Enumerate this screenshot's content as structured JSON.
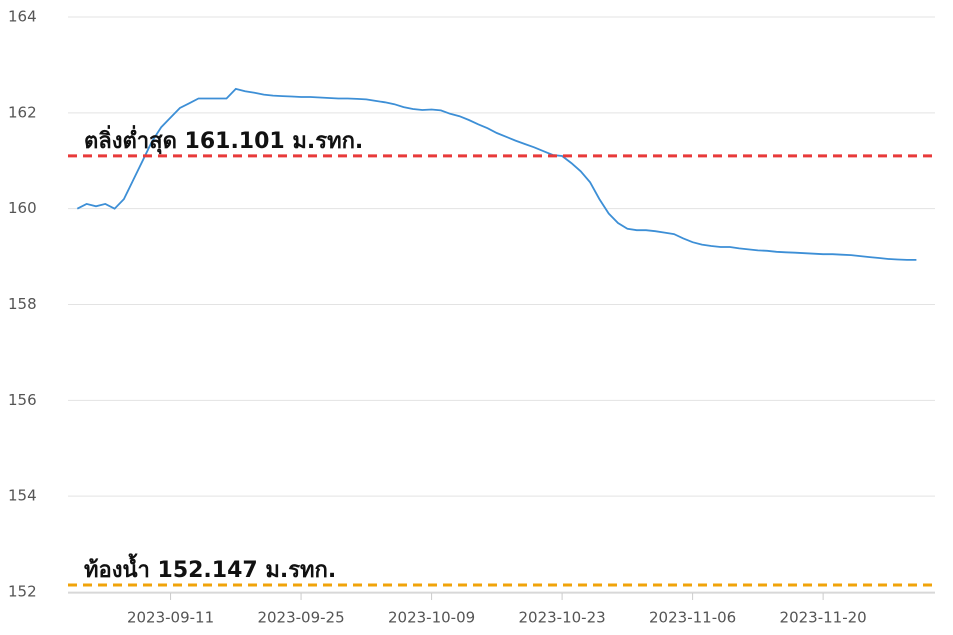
{
  "chart_data": {
    "type": "line",
    "x": [
      "2023-09-01",
      "2023-09-02",
      "2023-09-03",
      "2023-09-04",
      "2023-09-05",
      "2023-09-06",
      "2023-09-07",
      "2023-09-08",
      "2023-09-09",
      "2023-09-10",
      "2023-09-11",
      "2023-09-12",
      "2023-09-13",
      "2023-09-14",
      "2023-09-15",
      "2023-09-16",
      "2023-09-17",
      "2023-09-18",
      "2023-09-19",
      "2023-09-20",
      "2023-09-21",
      "2023-09-22",
      "2023-09-23",
      "2023-09-24",
      "2023-09-25",
      "2023-09-26",
      "2023-09-27",
      "2023-09-28",
      "2023-09-29",
      "2023-09-30",
      "2023-10-01",
      "2023-10-02",
      "2023-10-03",
      "2023-10-04",
      "2023-10-05",
      "2023-10-06",
      "2023-10-07",
      "2023-10-08",
      "2023-10-09",
      "2023-10-10",
      "2023-10-11",
      "2023-10-12",
      "2023-10-13",
      "2023-10-14",
      "2023-10-15",
      "2023-10-16",
      "2023-10-17",
      "2023-10-18",
      "2023-10-19",
      "2023-10-20",
      "2023-10-21",
      "2023-10-22",
      "2023-10-23",
      "2023-10-24",
      "2023-10-25",
      "2023-10-26",
      "2023-10-27",
      "2023-10-28",
      "2023-10-29",
      "2023-10-30",
      "2023-10-31",
      "2023-11-01",
      "2023-11-02",
      "2023-11-03",
      "2023-11-04",
      "2023-11-05",
      "2023-11-06",
      "2023-11-07",
      "2023-11-08",
      "2023-11-09",
      "2023-11-10",
      "2023-11-11",
      "2023-11-12",
      "2023-11-13",
      "2023-11-14",
      "2023-11-15",
      "2023-11-16",
      "2023-11-17",
      "2023-11-18",
      "2023-11-19",
      "2023-11-20",
      "2023-11-21",
      "2023-11-22",
      "2023-11-23",
      "2023-11-24",
      "2023-11-25",
      "2023-11-26",
      "2023-11-27",
      "2023-11-28",
      "2023-11-29",
      "2023-11-30"
    ],
    "series": [
      {
        "color": "#3d8fd6",
        "values": [
          160.0,
          160.1,
          160.05,
          160.1,
          160.0,
          160.2,
          160.6,
          161.0,
          161.4,
          161.7,
          161.9,
          162.1,
          162.2,
          162.3,
          162.3,
          162.3,
          162.3,
          162.5,
          162.45,
          162.42,
          162.38,
          162.36,
          162.35,
          162.34,
          162.33,
          162.33,
          162.32,
          162.31,
          162.3,
          162.3,
          162.29,
          162.28,
          162.25,
          162.22,
          162.18,
          162.12,
          162.08,
          162.06,
          162.07,
          162.05,
          161.98,
          161.93,
          161.85,
          161.76,
          161.68,
          161.58,
          161.5,
          161.42,
          161.35,
          161.28,
          161.2,
          161.12,
          161.1,
          160.95,
          160.78,
          160.55,
          160.2,
          159.9,
          159.7,
          159.58,
          159.55,
          159.55,
          159.53,
          159.5,
          159.47,
          159.38,
          159.3,
          159.25,
          159.22,
          159.2,
          159.2,
          159.17,
          159.15,
          159.13,
          159.12,
          159.1,
          159.09,
          159.08,
          159.07,
          159.06,
          159.05,
          159.05,
          159.04,
          159.03,
          159.01,
          158.99,
          158.97,
          158.95,
          158.94,
          158.93,
          158.93
        ]
      }
    ],
    "xlim": [
      "2023-08-31",
      "2023-12-02"
    ],
    "xticks": [
      "2023-09-11",
      "2023-09-25",
      "2023-10-09",
      "2023-10-23",
      "2023-11-06",
      "2023-11-20"
    ],
    "ylim": [
      152,
      164
    ],
    "yticks": [
      152,
      154,
      156,
      158,
      160,
      162,
      164
    ],
    "grid": true,
    "annotations": [
      {
        "label": "ตลิ่งต่ำสุด 161.101 ม.รทก.",
        "value": 161.101,
        "color": "#e83a3a"
      },
      {
        "label": "ท้องน้ำ 152.147 ม.รทก.",
        "value": 152.147,
        "color": "#f0a30a"
      }
    ]
  }
}
